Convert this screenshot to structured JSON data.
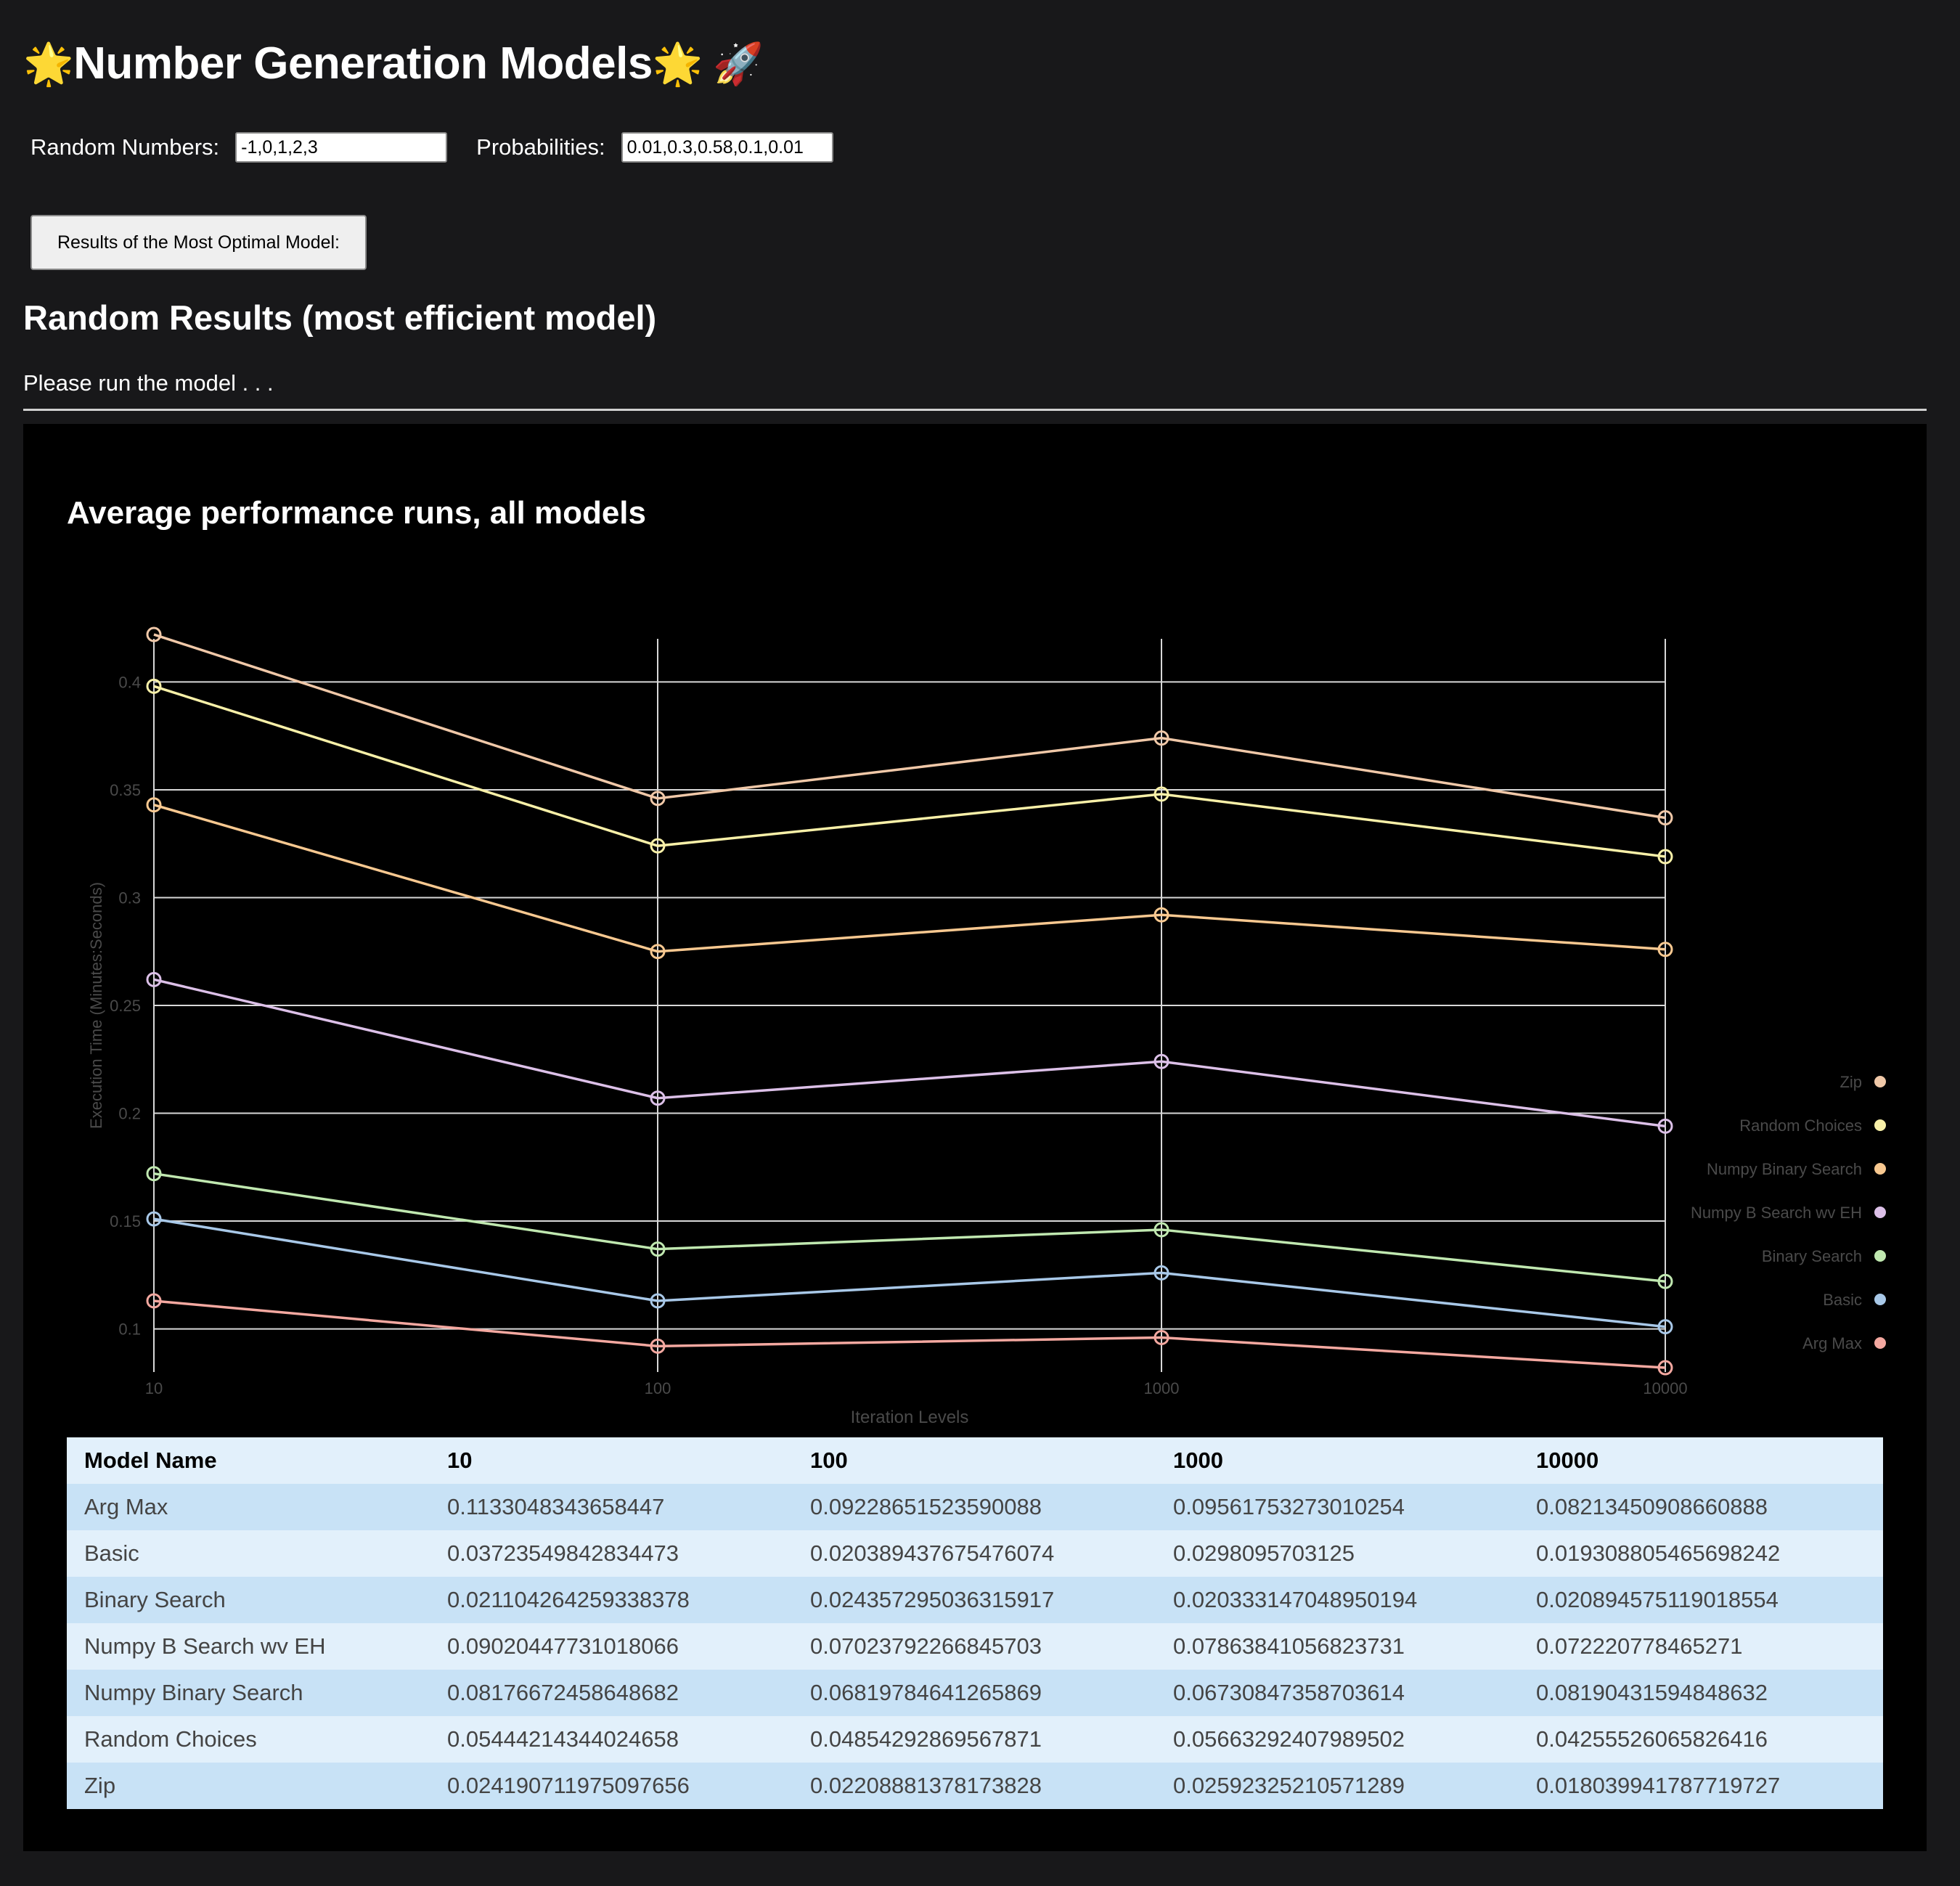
{
  "header": {
    "emoji_left": "🌟",
    "title": "Number Generation Models",
    "emoji_right": "🌟",
    "emoji_rocket": "🚀"
  },
  "inputs": {
    "random_numbers_label": "Random Numbers:",
    "random_numbers_value": "-1,0,1,2,3",
    "probabilities_label": "Probabilities:",
    "probabilities_value": "0.01,0.3,0.58,0.1,0.01"
  },
  "run_button_label": "Results of the Most Optimal Model:",
  "results": {
    "heading": "Random Results (most efficient model)",
    "status": "Please run the model . . ."
  },
  "chart_data": {
    "type": "line",
    "title": "Average performance runs, all models",
    "xlabel": "Iteration Levels",
    "ylabel": "Execution Time (Minutes:Seconds)",
    "x": [
      "10",
      "100",
      "1000",
      "10000"
    ],
    "yticks": [
      "0.1",
      "0.15",
      "0.2",
      "0.25",
      "0.3",
      "0.35",
      "0.4"
    ],
    "ylim": [
      0.08,
      0.42
    ],
    "grid": true,
    "legend_position": "right",
    "series": [
      {
        "name": "Zip",
        "color": "#f0c8a8",
        "values": [
          0.422,
          0.346,
          0.374,
          0.337
        ]
      },
      {
        "name": "Random Choices",
        "color": "#f8f0a8",
        "values": [
          0.398,
          0.324,
          0.348,
          0.319
        ]
      },
      {
        "name": "Numpy Binary Search",
        "color": "#f8c890",
        "values": [
          0.343,
          0.275,
          0.292,
          0.276
        ]
      },
      {
        "name": "Numpy B Search wv EH",
        "color": "#dcc0e8",
        "values": [
          0.262,
          0.207,
          0.224,
          0.194
        ]
      },
      {
        "name": "Binary Search",
        "color": "#c0e8b0",
        "values": [
          0.172,
          0.137,
          0.146,
          0.122
        ]
      },
      {
        "name": "Basic",
        "color": "#a8c8e8",
        "values": [
          0.151,
          0.113,
          0.126,
          0.101
        ]
      },
      {
        "name": "Arg Max",
        "color": "#f4a8a0",
        "values": [
          0.113,
          0.092,
          0.096,
          0.082
        ]
      }
    ]
  },
  "table": {
    "headers": [
      "Model Name",
      "10",
      "100",
      "1000",
      "10000"
    ],
    "rows": [
      [
        "Arg Max",
        "0.1133048343658447",
        "0.09228651523590088",
        "0.09561753273010254",
        "0.08213450908660888"
      ],
      [
        "Basic",
        "0.03723549842834473",
        "0.020389437675476074",
        "0.0298095703125",
        "0.019308805465698242"
      ],
      [
        "Binary Search",
        "0.021104264259338378",
        "0.024357295036315917",
        "0.020333147048950194",
        "0.020894575119018554"
      ],
      [
        "Numpy B Search wv EH",
        "0.09020447731018066",
        "0.07023792266845703",
        "0.07863841056823731",
        "0.072220778465271"
      ],
      [
        "Numpy Binary Search",
        "0.08176672458648682",
        "0.06819784641265869",
        "0.06730847358703614",
        "0.08190431594848632"
      ],
      [
        "Random Choices",
        "0.05444214344024658",
        "0.04854292869567871",
        "0.05663292407989502",
        "0.04255526065826416"
      ],
      [
        "Zip",
        "0.024190711975097656",
        "0.02208881378173828",
        "0.02592325210571289",
        "0.018039941787719727"
      ]
    ]
  }
}
